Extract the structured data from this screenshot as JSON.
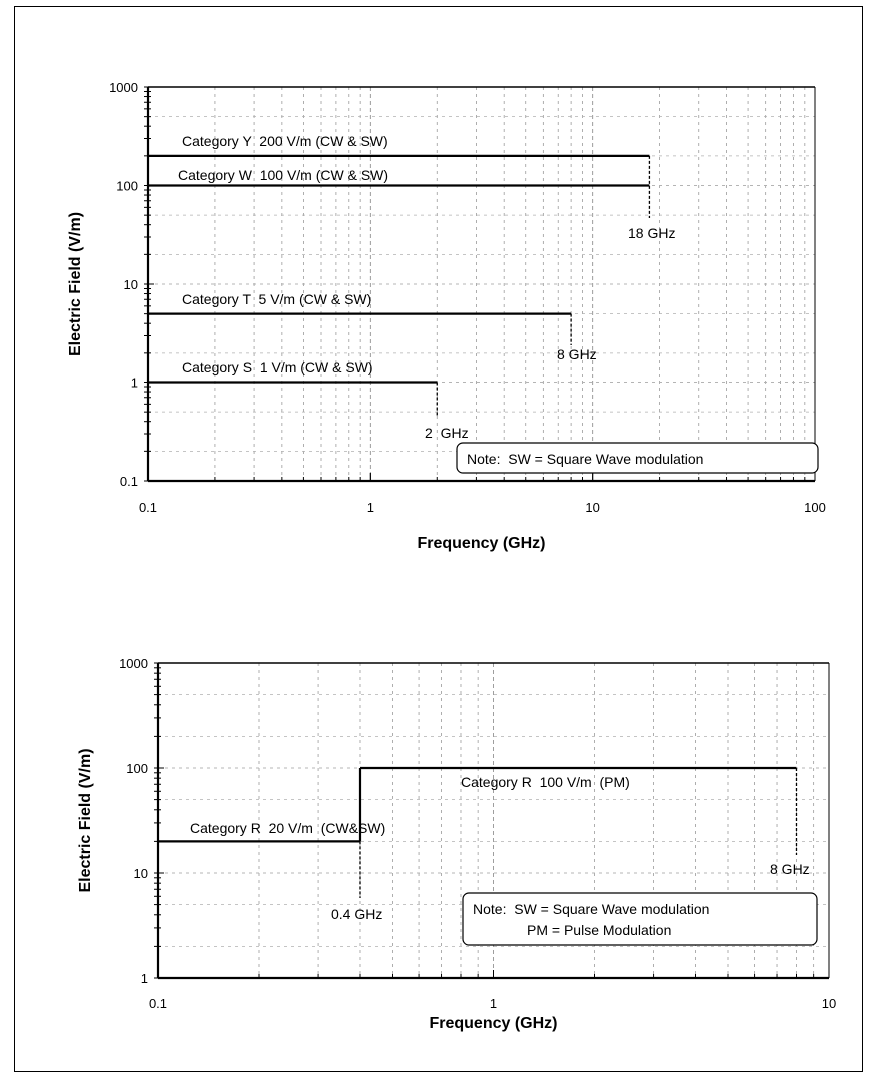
{
  "chart_data": [
    {
      "type": "line",
      "x_scale": "log",
      "y_scale": "log",
      "xlim": [
        0.1,
        100
      ],
      "ylim": [
        0.1,
        1000
      ],
      "xticks": [
        "0.1",
        "1",
        "10",
        "100"
      ],
      "yticks": [
        "0.1",
        "1",
        "10",
        "100",
        "1000"
      ],
      "xlabel": "Frequency (GHz)",
      "ylabel": "Electric Field (V/m)",
      "grid": true,
      "series": [
        {
          "name": "Category Y  200 V/m (CW & SW)",
          "points": [
            [
              0.1,
              200
            ],
            [
              18,
              200
            ]
          ],
          "end_label": "18 GHz"
        },
        {
          "name": "Category W  100 V/m (CW & SW)",
          "points": [
            [
              0.1,
              100
            ],
            [
              18,
              100
            ]
          ],
          "end_label": ""
        },
        {
          "name": "Category T  5 V/m (CW & SW)",
          "points": [
            [
              0.1,
              5
            ],
            [
              8,
              5
            ]
          ],
          "end_label": "8 GHz"
        },
        {
          "name": "Category S  1 V/m (CW & SW)",
          "points": [
            [
              0.1,
              1
            ],
            [
              2,
              1
            ]
          ],
          "end_label": "2  GHz"
        }
      ],
      "note": [
        "Note:  SW = Square Wave modulation"
      ]
    },
    {
      "type": "line",
      "x_scale": "log",
      "y_scale": "log",
      "xlim": [
        0.1,
        10
      ],
      "ylim": [
        1,
        1000
      ],
      "xticks": [
        "0.1",
        "1",
        "10"
      ],
      "yticks": [
        "1",
        "10",
        "100",
        "1000"
      ],
      "xlabel": "Frequency (GHz)",
      "ylabel": "Electric Field (V/m)",
      "grid": true,
      "series": [
        {
          "name": "Category R  20 V/m  (CW&SW)",
          "points": [
            [
              0.1,
              20
            ],
            [
              0.4,
              20
            ]
          ],
          "end_label": "0.4 GHz"
        },
        {
          "name": "Category R  100 V/m  (PM)",
          "points": [
            [
              0.4,
              100
            ],
            [
              8,
              100
            ]
          ],
          "end_label": "8 GHz"
        }
      ],
      "note": [
        "Note:  SW = Square Wave modulation",
        "PM = Pulse Modulation"
      ]
    }
  ]
}
